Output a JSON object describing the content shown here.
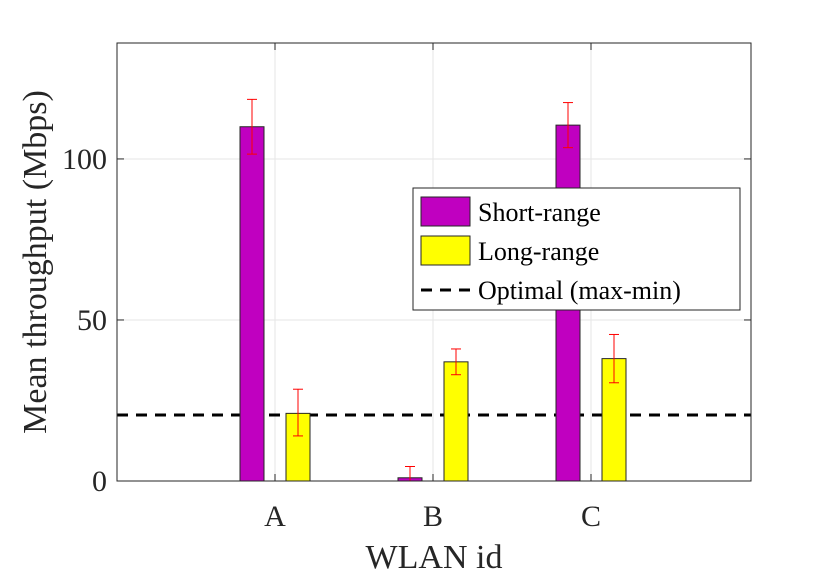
{
  "chart_data": {
    "type": "bar",
    "title": "",
    "xlabel": "WLAN id",
    "ylabel": "Mean throughput (Mbps)",
    "categories": [
      "A",
      "B",
      "C"
    ],
    "ylim": [
      0,
      136
    ],
    "yticks": [
      0,
      50,
      100
    ],
    "grid": true,
    "series": [
      {
        "name": "Short-range",
        "color": "#c000c0",
        "values": [
          110,
          1,
          110.5
        ],
        "err_low": [
          101.5,
          0,
          103.5
        ],
        "err_high": [
          118.5,
          4.5,
          117.5
        ]
      },
      {
        "name": "Long-range",
        "color": "#ffff00",
        "values": [
          21,
          37,
          38
        ],
        "err_low": [
          14,
          33,
          30.5
        ],
        "err_high": [
          28.5,
          41,
          45.5
        ]
      }
    ],
    "reference_line": {
      "name": "Optimal (max-min)",
      "value": 20.5,
      "style": "dashed",
      "color": "#000000"
    },
    "error_bar_color": "#ff0000",
    "legend_position": "upper-right-center"
  }
}
